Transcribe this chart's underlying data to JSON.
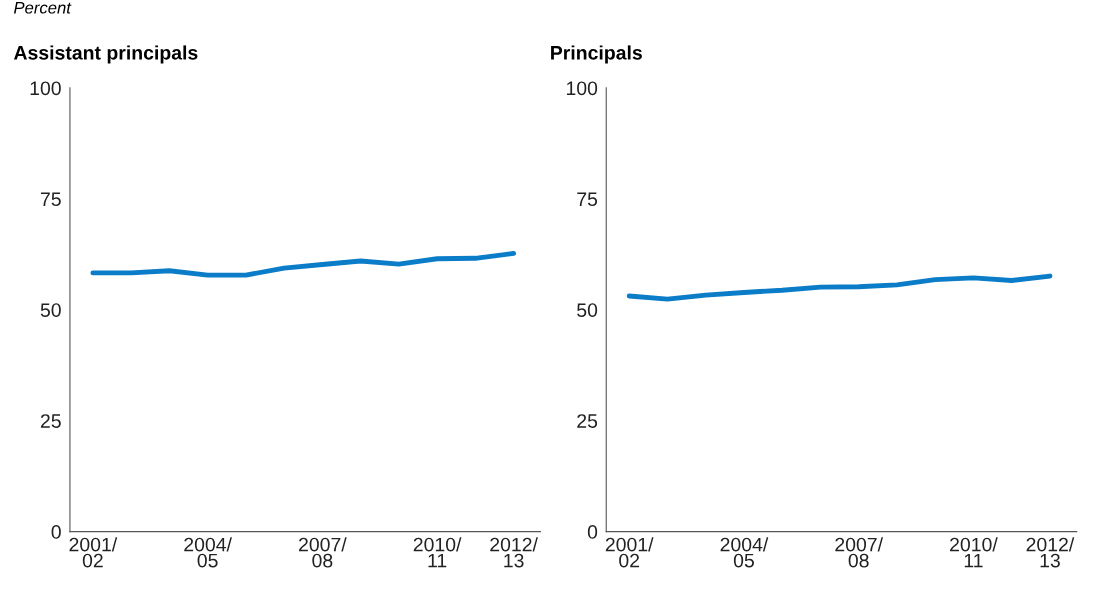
{
  "chart_data": [
    {
      "type": "line",
      "title": "Assistant principals",
      "ylabel": "Percent",
      "categories": [
        "2001/\n02",
        null,
        null,
        "2004/\n05",
        null,
        null,
        "2007/\n08",
        null,
        null,
        "2010/\n11",
        null,
        "2012/\n13"
      ],
      "series": [
        {
          "color": "#0a7cc8",
          "values": [
            58.3,
            58.3,
            58.8,
            57.8,
            57.8,
            59.4,
            60.2,
            61.0,
            60.3,
            61.5,
            61.6,
            62.7
          ]
        }
      ],
      "ylim": [
        0,
        100
      ],
      "yticks": [
        0,
        25,
        50,
        75,
        100
      ],
      "grid": false,
      "legend": false
    },
    {
      "type": "line",
      "title": "Principals",
      "categories": [
        "2001/\n02",
        null,
        null,
        "2004/\n05",
        null,
        null,
        "2007/\n08",
        null,
        null,
        "2010/\n11",
        null,
        "2012/\n13"
      ],
      "series": [
        {
          "color": "#0a7cc8",
          "values": [
            53.1,
            52.4,
            53.3,
            53.9,
            54.4,
            55.1,
            55.2,
            55.6,
            56.8,
            57.2,
            56.6,
            57.6
          ]
        }
      ],
      "ylim": [
        0,
        100
      ],
      "yticks": [
        0,
        25,
        50,
        75,
        100
      ],
      "grid": false,
      "legend": false
    }
  ]
}
